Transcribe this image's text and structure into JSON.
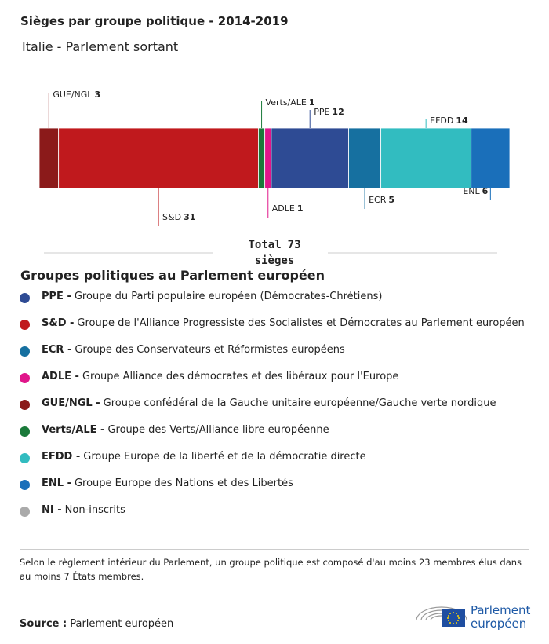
{
  "chart_data": {
    "type": "stacked-bar",
    "title": "Sièges par groupe politique - 2014-2019",
    "subtitle": "Italie - Parlement sortant",
    "series": [
      {
        "name": "GUE/NGL",
        "color": "#8b1a1a",
        "values": [
          3
        ]
      },
      {
        "name": "S&D",
        "color": "#c0191d",
        "values": [
          31
        ]
      },
      {
        "name": "Verts/ALE",
        "color": "#1a7a3a",
        "values": [
          1
        ]
      },
      {
        "name": "ADLE",
        "color": "#e0168a",
        "values": [
          1
        ]
      },
      {
        "name": "PPE",
        "color": "#2e4b94",
        "values": [
          12
        ]
      },
      {
        "name": "ECR",
        "color": "#1670a0",
        "values": [
          5
        ]
      },
      {
        "name": "EFDD",
        "color": "#32bcc0",
        "values": [
          14
        ]
      },
      {
        "name": "ENL",
        "color": "#1a6fba",
        "values": [
          6
        ]
      }
    ],
    "total_label": "Total",
    "total": 73,
    "total_unit": "sièges"
  },
  "legend": {
    "title": "Groupes politiques au Parlement européen",
    "items": [
      {
        "abbr": "PPE -",
        "text": "Groupe du Parti populaire européen (Démocrates-Chrétiens)",
        "color": "#2e4b94"
      },
      {
        "abbr": "S&D -",
        "text": "Groupe de l'Alliance Progressiste des Socialistes et Démocrates au Parlement européen",
        "color": "#c0191d"
      },
      {
        "abbr": "ECR -",
        "text": "Groupe des Conservateurs et Réformistes européens",
        "color": "#1670a0"
      },
      {
        "abbr": "ADLE -",
        "text": "Groupe Alliance des démocrates et des libéraux pour l'Europe",
        "color": "#e0168a"
      },
      {
        "abbr": "GUE/NGL -",
        "text": "Groupe confédéral de la Gauche unitaire européenne/Gauche verte nordique",
        "color": "#8b1a1a"
      },
      {
        "abbr": "Verts/ALE -",
        "text": "Groupe des Verts/Alliance libre européenne",
        "color": "#1a7a3a"
      },
      {
        "abbr": "EFDD -",
        "text": "Groupe Europe de la liberté et de la démocratie directe",
        "color": "#32bcc0"
      },
      {
        "abbr": "ENL -",
        "text": "Groupe Europe des Nations et des Libertés",
        "color": "#1a6fba"
      },
      {
        "abbr": "NI -",
        "text": "Non-inscrits",
        "color": "#aaaaaa"
      }
    ]
  },
  "note": "Selon le règlement intérieur du Parlement, un groupe politique est composé d'au moins 23 membres élus dans au moins 7 États membres.",
  "source": {
    "label": "Source :",
    "text": "Parlement européen"
  },
  "logo": {
    "line1": "Parlement",
    "line2": "européen"
  }
}
